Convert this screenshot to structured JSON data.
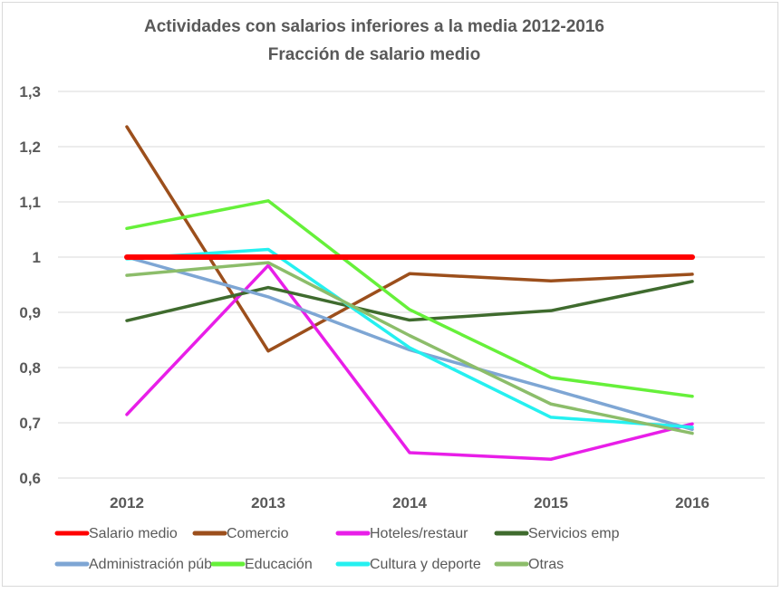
{
  "chart_data": {
    "type": "line",
    "title": "Actividades con salarios inferiores a la media 2012-2016",
    "subtitle": "Fracción de salario medio",
    "xlabel": "",
    "ylabel": "",
    "categories": [
      "2012",
      "2013",
      "2014",
      "2015",
      "2016"
    ],
    "ylim": [
      0.6,
      1.3
    ],
    "yticks": [
      1.3,
      1.2,
      1.1,
      1,
      0.9,
      0.8,
      0.7,
      0.6
    ],
    "ytick_labels": [
      "1,3",
      "1,2",
      "1,1",
      "1",
      "0,9",
      "0,8",
      "0,7",
      "0,6"
    ],
    "grid": true,
    "legend_position": "bottom",
    "series": [
      {
        "name": "Salario medio",
        "color": "#ff0000",
        "values": [
          1.0,
          1.0,
          1.0,
          1.0,
          1.0
        ]
      },
      {
        "name": "Comercio",
        "color": "#9c4f1c",
        "values": [
          1.236,
          0.83,
          0.97,
          0.957,
          0.969
        ]
      },
      {
        "name": "Hoteles/restaur",
        "color": "#e81ee8",
        "values": [
          0.715,
          0.985,
          0.646,
          0.634,
          0.698
        ]
      },
      {
        "name": "Servicios emp",
        "color": "#3f6b2e",
        "values": [
          0.885,
          0.945,
          0.886,
          0.903,
          0.956
        ]
      },
      {
        "name": "Administración púb",
        "color": "#7ea6d4",
        "values": [
          1.0,
          0.928,
          0.832,
          0.761,
          0.688
        ]
      },
      {
        "name": "Educación",
        "color": "#66f03a",
        "values": [
          1.052,
          1.102,
          0.905,
          0.782,
          0.748
        ]
      },
      {
        "name": "Cultura y deporte",
        "color": "#25f0f0",
        "values": [
          0.997,
          1.014,
          0.836,
          0.71,
          0.692
        ]
      },
      {
        "name": "Otras",
        "color": "#8cbd6a",
        "values": [
          0.967,
          0.99,
          0.858,
          0.734,
          0.681
        ]
      }
    ]
  }
}
